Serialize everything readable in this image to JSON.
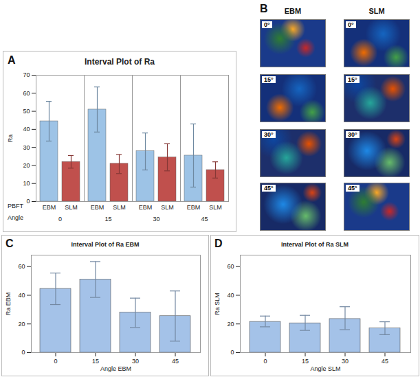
{
  "chart_data": [
    {
      "panel": "A",
      "type": "bar",
      "title": "Interval Plot of Ra",
      "y_label": "Ra",
      "x_label": "Angle",
      "group_label": "PBFT",
      "categories": [
        "0",
        "15",
        "30",
        "45"
      ],
      "series": [
        {
          "name": "EBM",
          "color": "#9dc3e6",
          "values": [
            44.5,
            51,
            28,
            25.5
          ],
          "lower": [
            33.5,
            38.5,
            17.5,
            8
          ],
          "upper": [
            55.5,
            63.5,
            38,
            43
          ]
        },
        {
          "name": "SLM",
          "color": "#c0504d",
          "values": [
            22,
            21,
            24.5,
            17.5
          ],
          "lower": [
            18.5,
            15.5,
            17,
            13
          ],
          "upper": [
            25.5,
            26,
            32,
            22
          ]
        }
      ],
      "ylim": [
        0,
        70
      ],
      "yticks": [
        0,
        10,
        20,
        30,
        40,
        50,
        60,
        70
      ]
    },
    {
      "panel": "C",
      "type": "bar",
      "title": "Interval Plot of Ra EBM",
      "y_label": "Ra EBM",
      "x_label": "Angle EBM",
      "categories": [
        "0",
        "15",
        "30",
        "45"
      ],
      "color": "#a4c2e8",
      "values": [
        44.5,
        51,
        28,
        25.5
      ],
      "lower": [
        33.5,
        38.5,
        17.5,
        8
      ],
      "upper": [
        55.5,
        63.5,
        38,
        43
      ],
      "ylim": [
        0,
        68
      ],
      "yticks": [
        0,
        20,
        40,
        60
      ]
    },
    {
      "panel": "D",
      "type": "bar",
      "title": "Interval Plot of Ra SLM",
      "y_label": "Ra SLM",
      "x_label": "Angle SLM",
      "categories": [
        "0",
        "15",
        "30",
        "45"
      ],
      "color": "#a4c2e8",
      "values": [
        21.5,
        20.5,
        23.5,
        17
      ],
      "lower": [
        18,
        15.5,
        16,
        12.5
      ],
      "upper": [
        25.5,
        26,
        32,
        21.5
      ],
      "ylim": [
        0,
        68
      ],
      "yticks": [
        0,
        20,
        40,
        60
      ]
    }
  ],
  "images": {
    "panel": "B",
    "columns": [
      "EBM",
      "SLM"
    ],
    "rows": [
      "0°",
      "15°",
      "30°",
      "45°"
    ]
  }
}
